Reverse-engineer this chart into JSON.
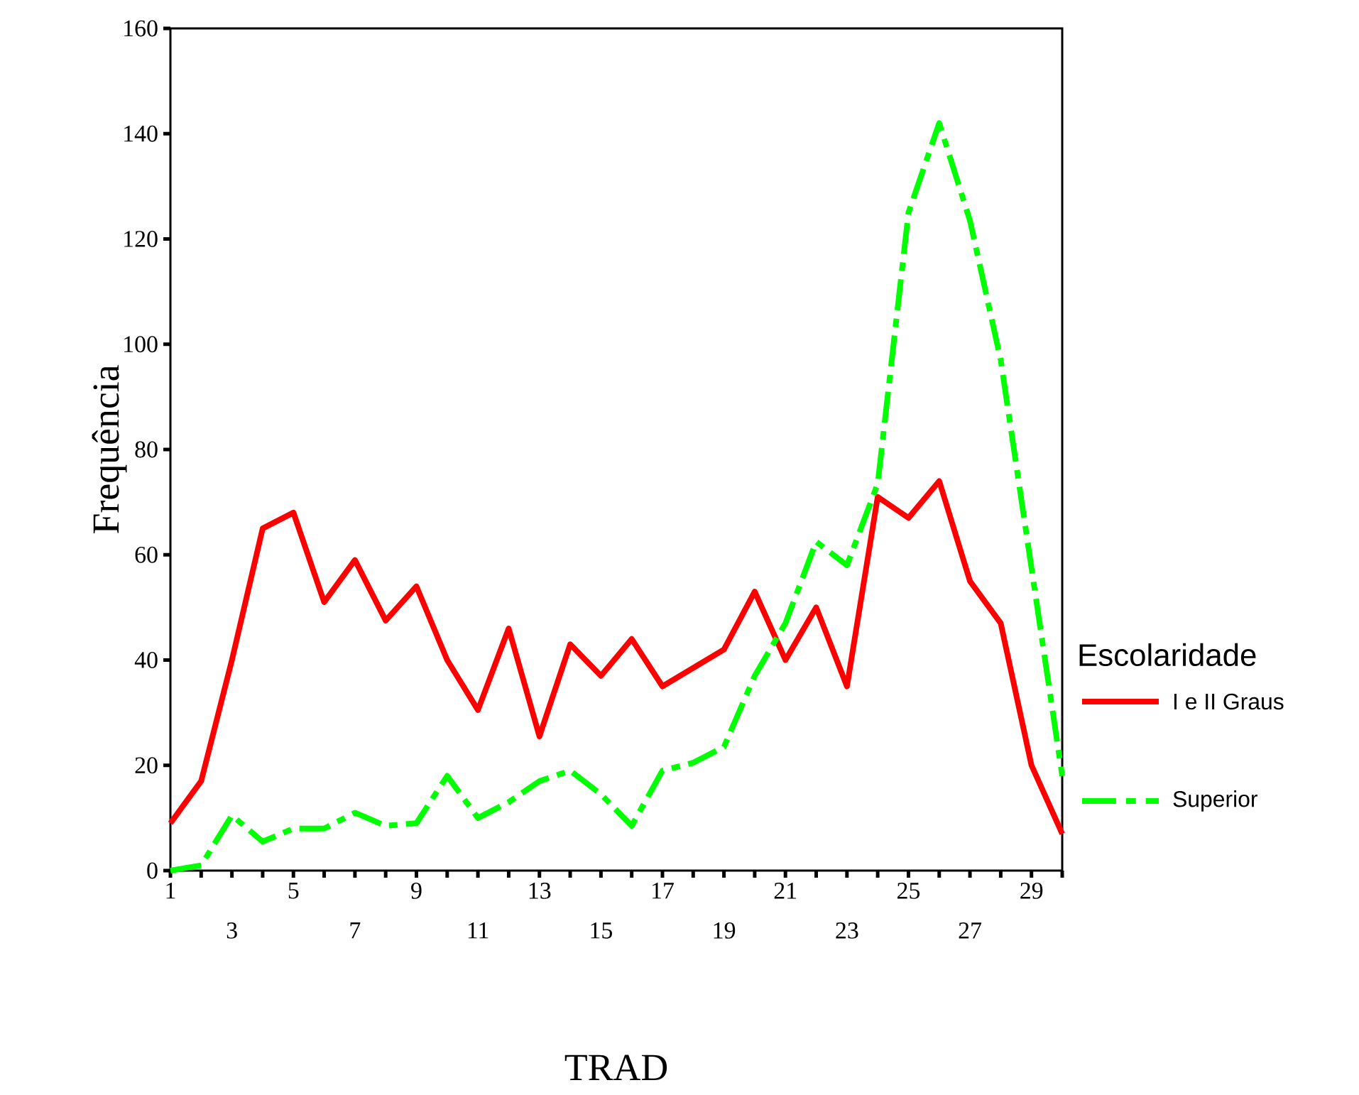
{
  "chart_data": {
    "type": "line",
    "xlabel": "TRAD",
    "ylabel": "Frequência",
    "legend_title": "Escolaridade",
    "categories": [
      "1",
      null,
      "3",
      null,
      "5",
      null,
      "7",
      null,
      "9",
      null,
      "11",
      null,
      "13",
      null,
      "15",
      null,
      "17",
      null,
      "19",
      null,
      "21",
      null,
      "23",
      null,
      "25",
      null,
      "27",
      null,
      "29",
      null
    ],
    "series": [
      {
        "name": "I e II Graus",
        "color": "#ff0000",
        "line_style": "solid",
        "values": [
          9,
          17,
          40,
          65,
          68,
          51,
          59,
          47.5,
          54,
          40,
          30.5,
          46,
          25.5,
          43,
          37,
          44,
          35,
          38.5,
          42,
          53,
          40,
          50,
          35,
          71,
          67,
          74,
          55,
          47,
          20,
          7
        ]
      },
      {
        "name": "Superior",
        "color": "#00ff00",
        "line_style": "dashed",
        "values": [
          0,
          1,
          10.5,
          5.5,
          8,
          8,
          11,
          8.5,
          9,
          18,
          10,
          13,
          17,
          19,
          14.5,
          8.5,
          19,
          20.5,
          23.5,
          37,
          47,
          62.5,
          58,
          73.5,
          125,
          142,
          123.5,
          97,
          57.5,
          18
        ]
      }
    ],
    "ylim": [
      0,
      160
    ],
    "yticks": [
      0,
      20,
      40,
      60,
      80,
      100,
      120,
      140,
      160
    ],
    "grid": false,
    "legend": "right",
    "marker": "none"
  }
}
